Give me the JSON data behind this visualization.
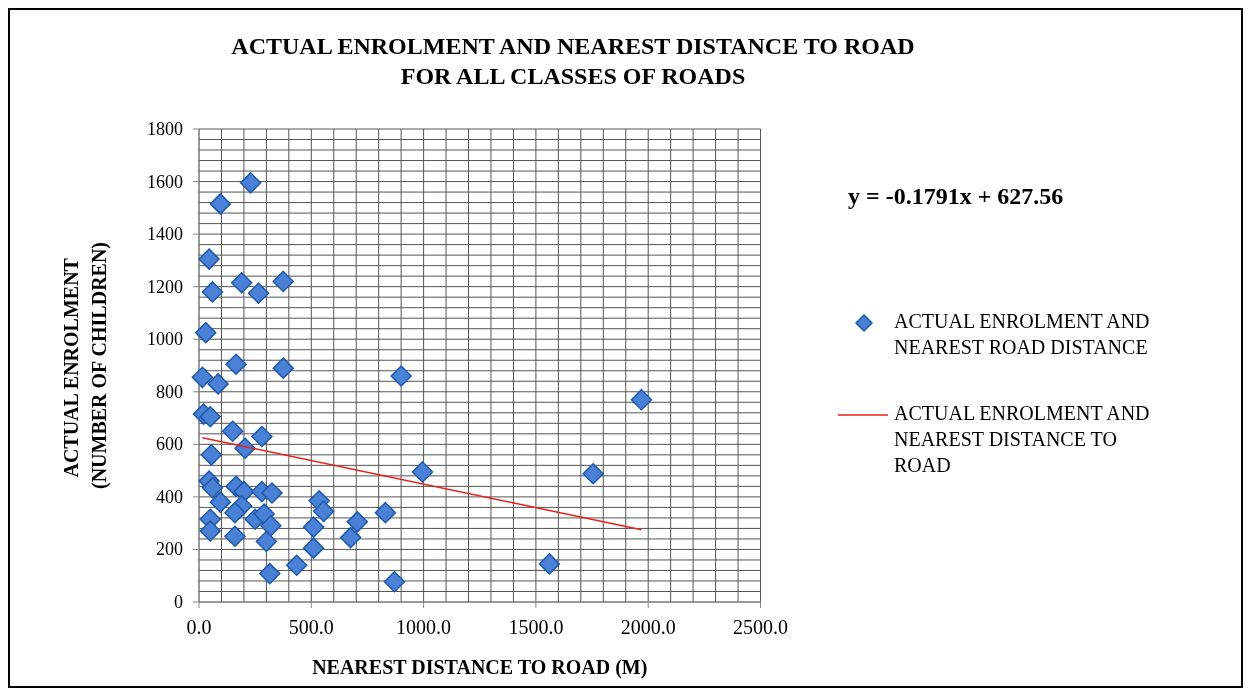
{
  "chart_data": {
    "type": "scatter",
    "title": "ACTUAL  ENROLMENT AND NEAREST  DISTANCE TO ROAD\nFOR ALL CLASSES OF ROADS",
    "xlabel": "NEAREST  DISTANCE TO ROAD (M)",
    "ylabel": "ACTUAL ENROLMENT  (NUMBER OF CHILDREN)",
    "annotations": [
      "y = -0.1791x + 627.56"
    ],
    "xlim": [
      0,
      2500
    ],
    "xticks": [
      {
        "value": 0,
        "label": "0.0"
      },
      {
        "value": 500,
        "label": "500.0"
      },
      {
        "value": 1000,
        "label": "1000.0"
      },
      {
        "value": 1500,
        "label": "1500.0"
      },
      {
        "value": 2000,
        "label": "2000.0"
      },
      {
        "value": 2500,
        "label": "2500.0"
      }
    ],
    "ylim": [
      0,
      1800
    ],
    "yticks": [
      0,
      200,
      400,
      600,
      800,
      1000,
      1200,
      1400,
      1600,
      1800
    ],
    "grid": true,
    "legend": "right",
    "marker": "diamond",
    "series": [
      {
        "name": "ACTUAL ENROLMENT AND NEAREST ROAD DISTANCE",
        "color": "#4a80d6",
        "x": [
          230,
          95,
          45,
          60,
          190,
          265,
          375,
          30,
          165,
          375,
          900,
          15,
          85,
          20,
          50,
          150,
          280,
          205,
          55,
          45,
          60,
          165,
          200,
          280,
          325,
          95,
          190,
          160,
          250,
          290,
          50,
          50,
          160,
          300,
          320,
          535,
          555,
          510,
          510,
          705,
          675,
          830,
          435,
          315,
          870,
          995,
          1970,
          1755,
          1560
        ],
        "values": [
          1595,
          1515,
          1305,
          1180,
          1215,
          1175,
          1220,
          1025,
          905,
          890,
          860,
          855,
          830,
          715,
          705,
          650,
          630,
          585,
          560,
          460,
          435,
          440,
          420,
          420,
          415,
          380,
          365,
          340,
          315,
          335,
          315,
          270,
          250,
          230,
          290,
          385,
          345,
          285,
          205,
          305,
          245,
          340,
          140,
          108,
          77,
          495,
          770,
          488,
          145
        ]
      },
      {
        "name": "ACTUAL ENROLMENT AND NEAREST DISTANCE TO ROAD",
        "type": "line",
        "color": "#e8201c",
        "marker": "none",
        "x": [
          15,
          1970
        ],
        "values": [
          625,
          275
        ]
      }
    ]
  }
}
